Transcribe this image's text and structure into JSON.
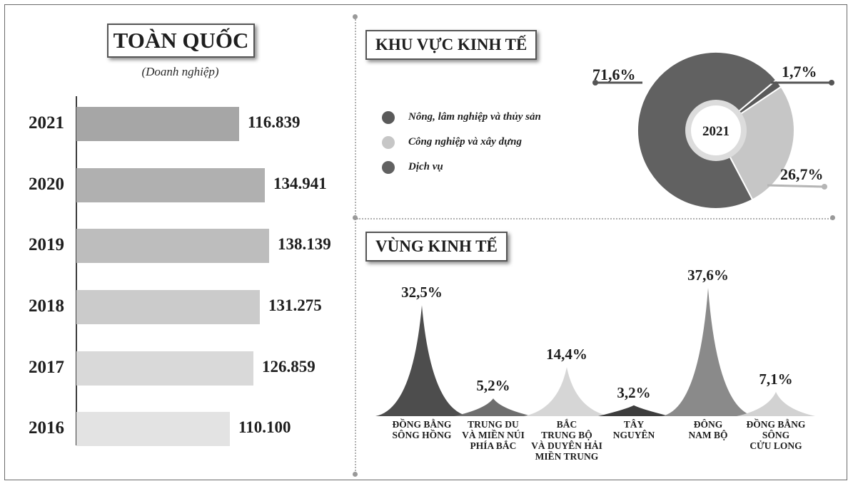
{
  "left_panel": {
    "title": "TOÀN QUỐC",
    "subtitle": "(Doanh nghiệp)"
  },
  "sector_panel": {
    "title": "KHU VỰC KINH TẾ",
    "center_label": "2021"
  },
  "region_panel": {
    "title": "VÙNG KINH TẾ"
  },
  "colors": {
    "bars": [
      "#a6a6a6",
      "#b0b0b0",
      "#bdbdbd",
      "#cbcbcb",
      "#d9d9d9",
      "#e3e3e3"
    ],
    "agri": "#5a5a5a",
    "industry": "#c6c6c6",
    "service": "#616161",
    "regions": [
      "#4d4d4d",
      "#6e6e6e",
      "#d6d6d6",
      "#3d3d3d",
      "#8a8a8a",
      "#d2d2d2"
    ]
  },
  "chart_data": [
    {
      "type": "bar",
      "orientation": "horizontal",
      "title": "TOÀN QUỐC",
      "subtitle": "(Doanh nghiệp)",
      "categories": [
        "2021",
        "2020",
        "2019",
        "2018",
        "2017",
        "2016"
      ],
      "values": [
        116839,
        134941,
        138139,
        131275,
        126859,
        110100
      ],
      "value_labels": [
        "116.839",
        "134.941",
        "138.139",
        "131.275",
        "126.859",
        "110.100"
      ]
    },
    {
      "type": "pie",
      "title": "KHU VỰC KINH TẾ",
      "center_label": "2021",
      "categories": [
        "Nông, lâm nghiệp và thủy sản",
        "Công nghiệp và xây dựng",
        "Dịch vụ"
      ],
      "values": [
        1.7,
        26.7,
        71.6
      ],
      "value_labels": [
        "1,7%",
        "26,7%",
        "71,6%"
      ],
      "legend_position": "left"
    },
    {
      "type": "area",
      "title": "VÙNG KINH TẾ",
      "categories": [
        "ĐỒNG BẰNG\nSÔNG HỒNG",
        "TRUNG DU\nVÀ MIỀN NÚI\nPHÍA BẮC",
        "BẮC\nTRUNG BỘ\nVÀ DUYÊN HẢI\nMIỀN TRUNG",
        "TÂY\nNGUYÊN",
        "ĐÔNG\nNAM BỘ",
        "ĐỒNG BẰNG\nSÔNG\nCỬU LONG"
      ],
      "values": [
        32.5,
        5.2,
        14.4,
        3.2,
        37.6,
        7.1
      ],
      "value_labels": [
        "32,5%",
        "5,2%",
        "14,4%",
        "3,2%",
        "37,6%",
        "7,1%"
      ]
    }
  ]
}
